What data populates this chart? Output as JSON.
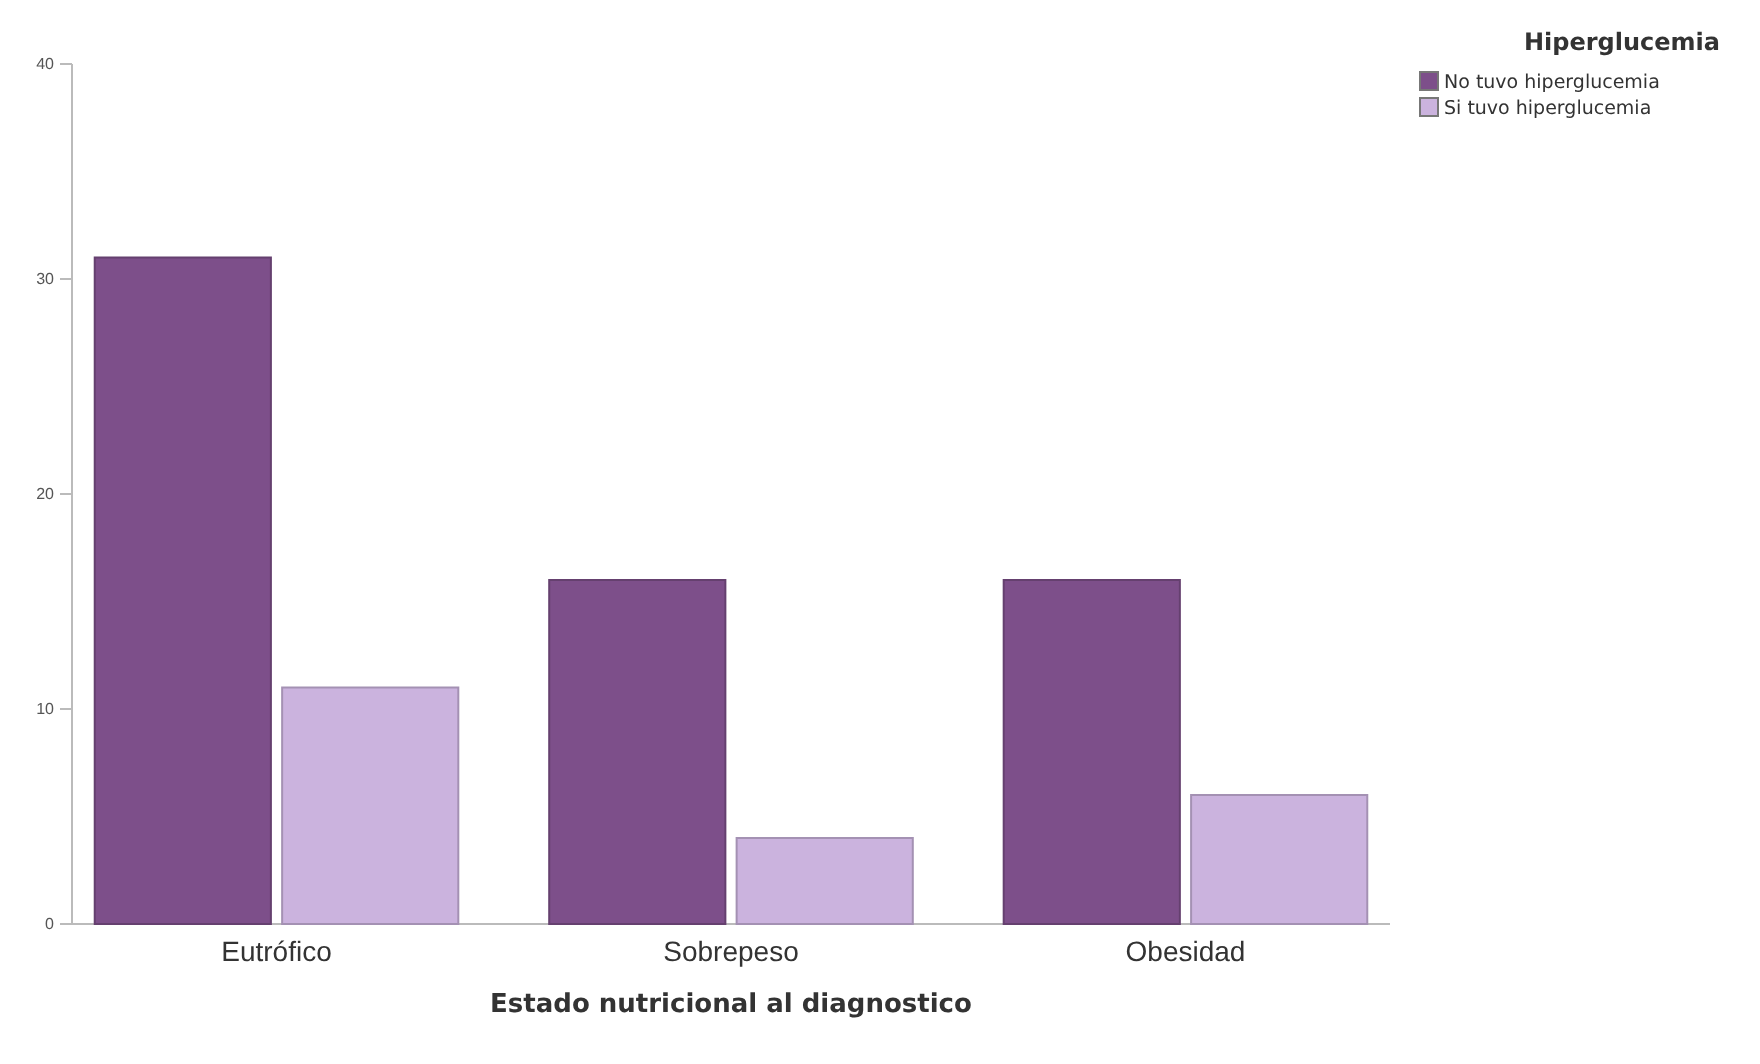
{
  "chart_data": {
    "type": "bar",
    "xlabel": "Estado nutricional al diagnostico",
    "legend_title": "Hiperglucemia",
    "categories": [
      "Eutrófico",
      "Sobrepeso",
      "Obesidad"
    ],
    "series": [
      {
        "name": "No tuvo hiperglucemia",
        "color": "#7d4f8a",
        "values": [
          31,
          16,
          16
        ]
      },
      {
        "name": "Si tuvo hiperglucemia",
        "color": "#cbb3de",
        "values": [
          11,
          4,
          6
        ]
      }
    ],
    "ylim": [
      0,
      40
    ],
    "yticks": [
      0,
      10,
      20,
      30,
      40
    ],
    "grid": false,
    "legend": "top right"
  }
}
